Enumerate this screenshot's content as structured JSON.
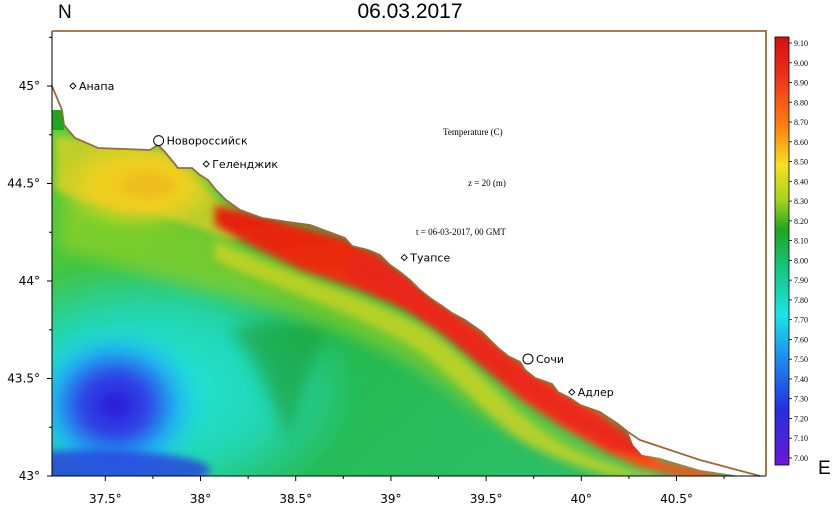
{
  "title": "06.03.2017",
  "north_label": "N",
  "east_label": "E",
  "annotations": {
    "variable": "Temperature (C)",
    "depth": "z = 20 (m)",
    "time": "t = 06-03-2017, 00 GMT"
  },
  "cities": [
    {
      "name": "Анапа",
      "lon": 37.33,
      "lat": 45.0,
      "marker": "small"
    },
    {
      "name": "Новороссийск",
      "lon": 37.78,
      "lat": 44.72,
      "marker": "large"
    },
    {
      "name": "Геленджик",
      "lon": 38.03,
      "lat": 44.6,
      "marker": "small"
    },
    {
      "name": "Туапсе",
      "lon": 39.07,
      "lat": 44.12,
      "marker": "small"
    },
    {
      "name": "Сочи",
      "lon": 39.72,
      "lat": 43.6,
      "marker": "large"
    },
    {
      "name": "Адлер",
      "lon": 39.95,
      "lat": 43.43,
      "marker": "small"
    }
  ],
  "x_ticks": [
    "37.5°",
    "38°",
    "38.5°",
    "39°",
    "39.5°",
    "40°",
    "40.5°"
  ],
  "y_ticks": [
    "45°",
    "44.5°",
    "44°",
    "43.5°",
    "43°"
  ],
  "colorbar_labels": [
    "9.10",
    "9.00",
    "8.90",
    "8.80",
    "8.70",
    "8.60",
    "8.50",
    "8.40",
    "8.30",
    "8.20",
    "8.10",
    "8.00",
    "7.90",
    "7.80",
    "7.70",
    "7.60",
    "7.50",
    "7.40",
    "7.30",
    "7.20",
    "7.10",
    "7.00"
  ],
  "colors": {
    "coast": "#9b6a3c",
    "frame": "#9b6a3c"
  }
}
